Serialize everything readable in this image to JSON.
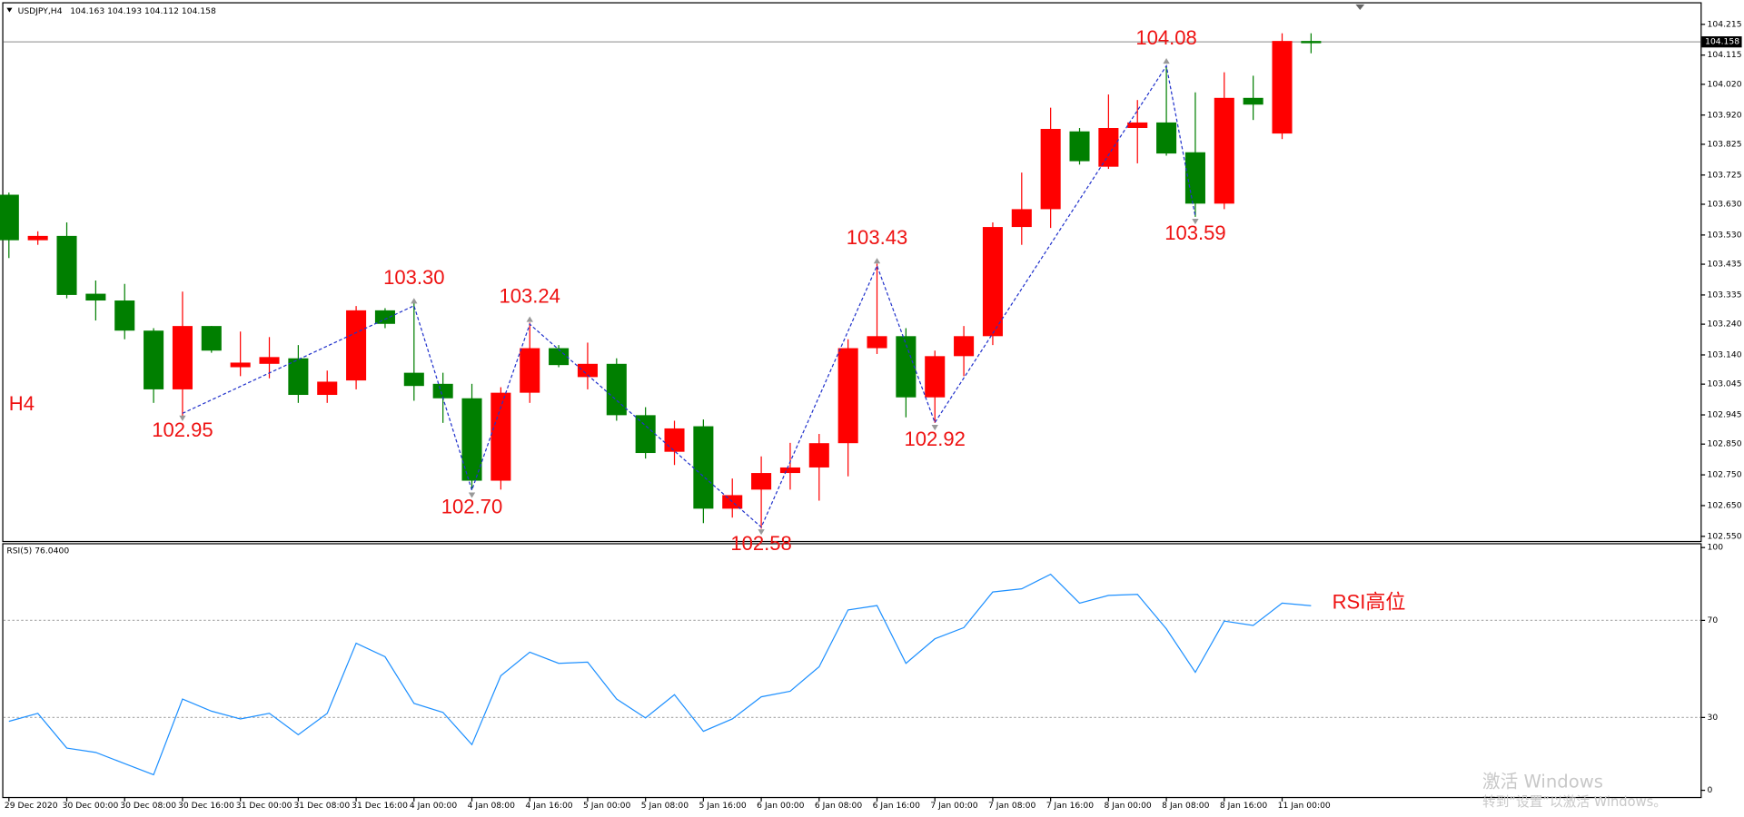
{
  "chart_data": [
    {
      "type": "candlestick",
      "title": "USDJPY,H4",
      "subtitle": "104.163 104.193 104.112 104.158",
      "label": "H4",
      "up_color": "#ff0000",
      "down_color": "#007f00",
      "open": [
        103.661,
        103.513,
        103.527,
        103.339,
        103.317,
        103.219,
        103.028,
        103.234,
        103.1,
        103.111,
        103.129,
        103.01,
        103.057,
        103.285,
        103.082,
        103.046,
        102.999,
        102.731,
        103.017,
        103.162,
        103.068,
        103.111,
        102.944,
        102.825,
        102.908,
        102.64,
        102.702,
        102.756,
        102.774,
        102.853,
        103.162,
        103.201,
        103.002,
        103.136,
        103.201,
        103.556,
        103.614,
        103.867,
        103.752,
        103.878,
        103.896,
        103.799,
        103.632,
        103.976,
        103.86,
        104.161
      ],
      "high": [
        103.668,
        103.542,
        103.571,
        103.382,
        103.371,
        103.227,
        103.346,
        103.234,
        103.216,
        103.198,
        103.172,
        103.089,
        103.299,
        103.292,
        103.31,
        103.082,
        103.046,
        103.035,
        103.245,
        103.172,
        103.18,
        103.129,
        102.97,
        102.926,
        102.93,
        102.738,
        102.81,
        102.854,
        102.883,
        103.191,
        103.437,
        103.227,
        103.154,
        103.234,
        103.571,
        103.733,
        103.944,
        103.878,
        103.987,
        103.969,
        104.077,
        103.994,
        104.059,
        104.048,
        104.186,
        104.186
      ],
      "low": [
        103.455,
        103.498,
        103.324,
        103.252,
        103.191,
        102.984,
        102.937,
        103.147,
        103.071,
        103.064,
        102.984,
        102.984,
        103.028,
        103.227,
        102.991,
        102.919,
        102.702,
        102.702,
        102.984,
        103.1,
        103.028,
        102.926,
        102.803,
        102.782,
        102.593,
        102.611,
        102.575,
        102.702,
        102.666,
        102.745,
        103.143,
        102.937,
        102.919,
        103.071,
        103.172,
        103.498,
        103.553,
        103.759,
        103.745,
        103.763,
        103.788,
        103.589,
        103.614,
        103.904,
        103.842,
        104.121
      ],
      "close": [
        103.513,
        103.527,
        103.335,
        103.317,
        103.219,
        103.028,
        103.234,
        103.154,
        103.115,
        103.133,
        103.01,
        103.053,
        103.285,
        103.241,
        103.039,
        102.999,
        102.731,
        103.017,
        103.162,
        103.107,
        103.111,
        102.944,
        102.821,
        102.901,
        102.64,
        102.684,
        102.756,
        102.774,
        102.853,
        103.162,
        103.201,
        103.002,
        103.136,
        103.201,
        103.556,
        103.614,
        103.875,
        103.77,
        103.878,
        103.896,
        103.795,
        103.632,
        103.976,
        103.954,
        104.161,
        104.158
      ],
      "current_price": 104.158,
      "zigzag": {
        "color": "#2233cc",
        "label_color": "#ee1111",
        "points": [
          {
            "index": 6,
            "value": 102.95
          },
          {
            "index": 14,
            "value": 103.3,
            "label": "103.30"
          },
          {
            "index": 16,
            "value": 102.7,
            "label": "102.70"
          },
          {
            "index": 18,
            "value": 103.24
          },
          {
            "index": 26,
            "value": 102.58
          },
          {
            "index": 30,
            "value": 103.43
          },
          {
            "index": 32,
            "value": 102.92
          },
          {
            "index": 40,
            "value": 104.08
          },
          {
            "index": 41,
            "value": 103.59
          }
        ]
      },
      "ylim": [
        102.535,
        104.287
      ],
      "yticks": [
        104.215,
        104.115,
        {
          "value": 104.02,
          "label": "104.020"
        },
        {
          "value": 103.92,
          "label": "103.920"
        },
        103.825,
        103.725,
        {
          "value": 103.63,
          "label": "103.630"
        },
        {
          "value": 103.53,
          "label": "103.530"
        },
        103.435,
        103.335,
        {
          "value": 103.24,
          "label": "103.240"
        },
        {
          "value": 103.14,
          "label": "103.140"
        },
        103.045,
        102.945,
        {
          "value": 102.85,
          "label": "102.850"
        },
        {
          "value": 102.75,
          "label": "102.750"
        },
        {
          "value": 102.65,
          "label": "102.650"
        },
        {
          "value": 102.55,
          "label": "102.550"
        }
      ]
    },
    {
      "type": "line",
      "title": "RSI(5) 76.0400",
      "note": "RSI高位",
      "color": "#1e90ff",
      "categories": [
        "29 Dec 2020",
        null,
        "30 Dec 00:00",
        null,
        "30 Dec 08:00",
        null,
        "30 Dec 16:00",
        null,
        "31 Dec 00:00",
        null,
        "31 Dec 08:00",
        null,
        "31 Dec 16:00",
        null,
        "4 Jan 00:00",
        null,
        "4 Jan 08:00",
        null,
        "4 Jan 16:00",
        null,
        "5 Jan 00:00",
        null,
        "5 Jan 08:00",
        null,
        "5 Jan 16:00",
        null,
        "6 Jan 00:00",
        null,
        "6 Jan 08:00",
        null,
        "6 Jan 16:00",
        null,
        "7 Jan 00:00",
        null,
        "7 Jan 08:00",
        null,
        "7 Jan 16:00",
        null,
        "8 Jan 00:00",
        null,
        "8 Jan 08:00",
        null,
        "8 Jan 16:00",
        null,
        "11 Jan 00:00",
        null
      ],
      "values": [
        28.4,
        31.7,
        17.4,
        15.6,
        11,
        6.4,
        37.6,
        32.6,
        29.4,
        31.7,
        22.9,
        31.7,
        60.6,
        55,
        35.8,
        32.1,
        18.8,
        47.2,
        56.9,
        52.3,
        52.8,
        37.6,
        29.8,
        39.4,
        24.3,
        29.4,
        38.5,
        40.8,
        50.9,
        74.3,
        76.1,
        52.3,
        62.4,
        67,
        81.7,
        83,
        89,
        77.1,
        80.3,
        80.7,
        66.5,
        48.6,
        69.7,
        67.9,
        77.1,
        76.04
      ],
      "levels": [
        30,
        70
      ],
      "ylim": [
        -2.75,
        101.8
      ],
      "yticks": [
        0,
        30,
        70,
        100
      ]
    }
  ],
  "watermark": [
    "激活 Windows",
    "转到“设置”以激活 Windows。"
  ]
}
